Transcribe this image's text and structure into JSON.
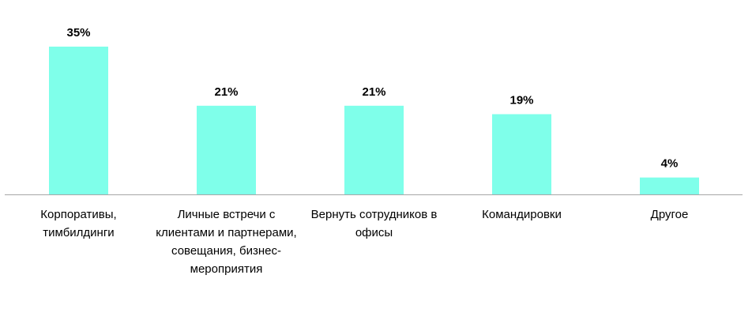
{
  "chart_data": {
    "type": "bar",
    "title": "",
    "xlabel": "",
    "ylabel": "",
    "categories": [
      "Корпоративы, тимбилдинги",
      "Личные встречи с клиентами и партнерами, совещания, бизнес-мероприятия",
      "Вернуть сотрудников в офисы",
      "Командировки",
      "Другое"
    ],
    "values": [
      35,
      21,
      21,
      19,
      4
    ],
    "value_labels": [
      "35%",
      "21%",
      "21%",
      "19%",
      "4%"
    ],
    "ylim": [
      0,
      35
    ],
    "grid": false,
    "legend": "none",
    "bar_color": "#7FFFEA",
    "axis_color": "#A6A6A6"
  }
}
